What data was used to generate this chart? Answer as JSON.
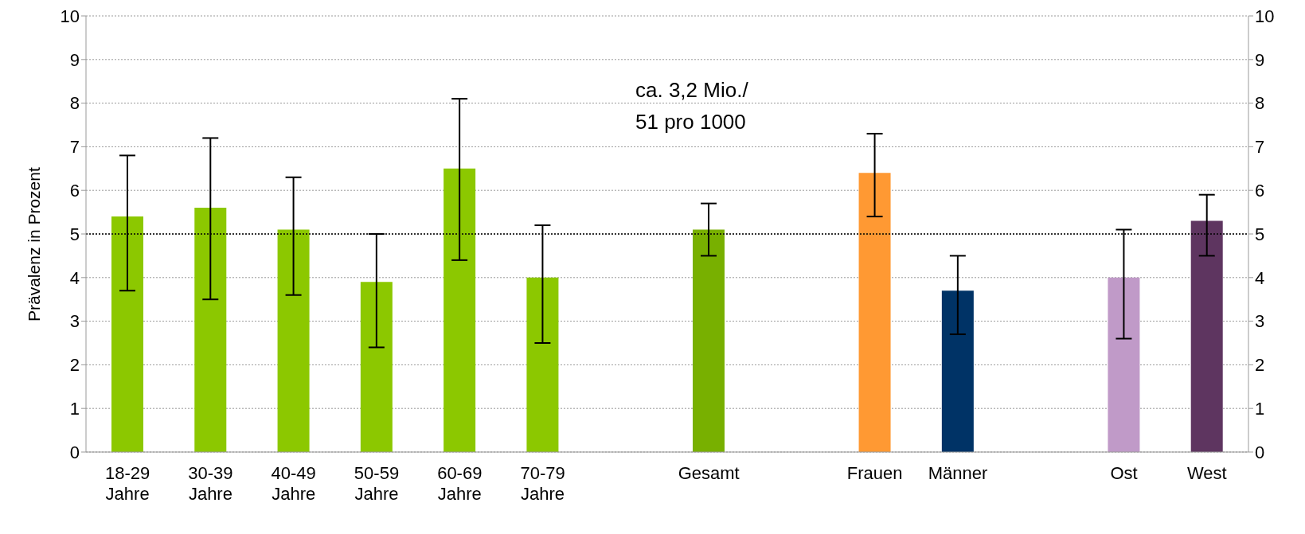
{
  "chart_data": {
    "type": "bar",
    "categories": [
      "18-29 Jahre",
      "30-39 Jahre",
      "40-49 Jahre",
      "50-59 Jahre",
      "60-69 Jahre",
      "70-79 Jahre",
      null,
      "Gesamt",
      null,
      "Frauen",
      "Männer",
      null,
      "Ost",
      "West"
    ],
    "values": [
      5.4,
      5.6,
      5.1,
      3.9,
      6.5,
      4.0,
      null,
      5.1,
      null,
      6.4,
      3.7,
      null,
      4.0,
      5.3
    ],
    "errors": [
      [
        3.7,
        6.8
      ],
      [
        3.5,
        7.2
      ],
      [
        3.6,
        6.3
      ],
      [
        2.4,
        5.0
      ],
      [
        4.4,
        8.1
      ],
      [
        2.5,
        5.2
      ],
      null,
      [
        4.5,
        5.7
      ],
      null,
      [
        5.4,
        7.3
      ],
      [
        2.7,
        4.5
      ],
      null,
      [
        2.6,
        5.1
      ],
      [
        4.5,
        5.9
      ]
    ],
    "colors": [
      "#8cc800",
      "#8cc800",
      "#8cc800",
      "#8cc800",
      "#8cc800",
      "#8cc800",
      null,
      "#78b000",
      null,
      "#ff9933",
      "#003366",
      null,
      "#c09ac8",
      "#5e3560"
    ],
    "ylabel": "Prävalenz in Prozent",
    "ylim": [
      0,
      10
    ],
    "yticks": [
      0,
      1,
      2,
      3,
      4,
      5,
      6,
      7,
      8,
      9,
      10
    ],
    "y2lim": [
      0,
      10
    ],
    "y2ticks": [
      0,
      1,
      2,
      3,
      4,
      5,
      6,
      7,
      8,
      9,
      10
    ],
    "ref_lines": [
      {
        "axis": "y",
        "value": 5,
        "color": "#000000",
        "line_style": "dotted"
      }
    ],
    "annotations": [
      "ca. 3,2 Mio./ 51 pro 1000"
    ],
    "grid": "y"
  }
}
